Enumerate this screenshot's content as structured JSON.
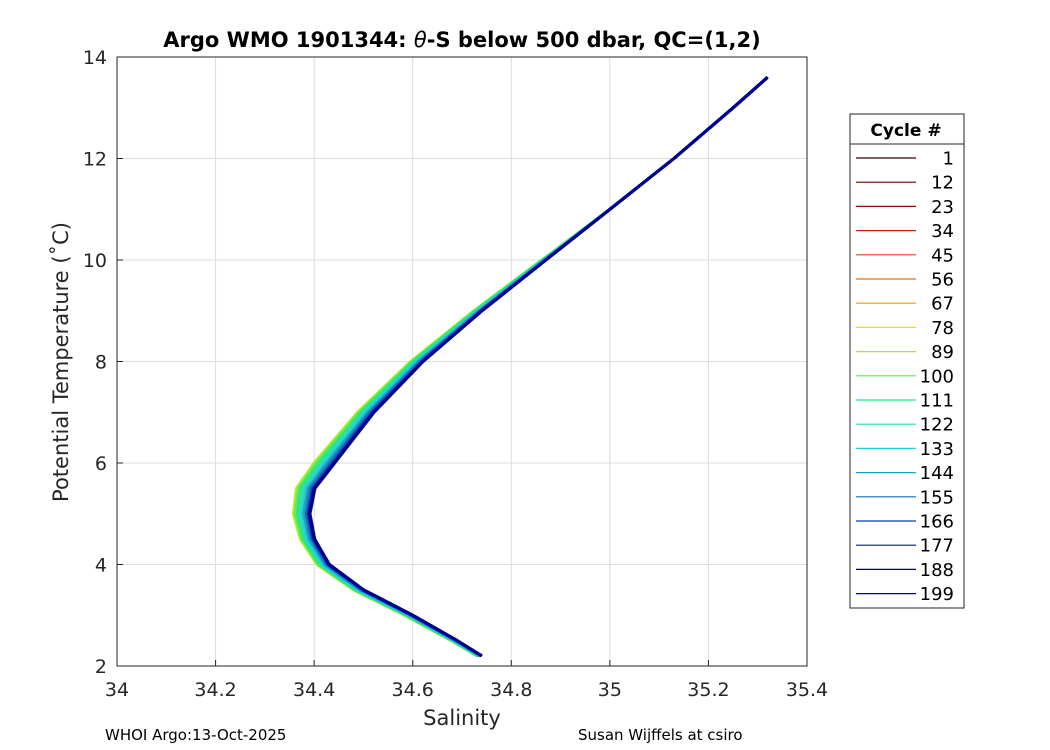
{
  "chart_data": {
    "type": "line",
    "title_prefix": "Argo WMO 1901344: ",
    "title_theta": "θ",
    "title_suffix": "-S below 500 dbar,  QC=(1,2)",
    "xlabel": "Salinity",
    "ylabel": "Potential Temperature (",
    "ylabel_unit": "˚C)",
    "xlim": [
      34,
      35.4
    ],
    "ylim": [
      2,
      14
    ],
    "x_ticks": [
      "34",
      "34.2",
      "34.4",
      "34.6",
      "34.8",
      "35",
      "35.2",
      "35.4"
    ],
    "y_ticks": [
      "2",
      "4",
      "6",
      "8",
      "10",
      "12",
      "14"
    ],
    "grid": true,
    "colormap": "jet",
    "legend": {
      "title": "Cycle #",
      "placement": "outside-right",
      "entries": [
        {
          "label": "1",
          "color": "#3a0000"
        },
        {
          "label": "12",
          "color": "#6a0000"
        },
        {
          "label": "23",
          "color": "#a00000"
        },
        {
          "label": "34",
          "color": "#d02010"
        },
        {
          "label": "45",
          "color": "#e84010"
        },
        {
          "label": "56",
          "color": "#e87010"
        },
        {
          "label": "67",
          "color": "#e8a000"
        },
        {
          "label": "78",
          "color": "#f0e000"
        },
        {
          "label": "89",
          "color": "#a8e820"
        },
        {
          "label": "100",
          "color": "#50e850"
        },
        {
          "label": "111",
          "color": "#20e880"
        },
        {
          "label": "122",
          "color": "#20e0b0"
        },
        {
          "label": "133",
          "color": "#20d0e0"
        },
        {
          "label": "144",
          "color": "#10a0d0"
        },
        {
          "label": "155",
          "color": "#0870c0"
        },
        {
          "label": "166",
          "color": "#0040b0"
        },
        {
          "label": "177",
          "color": "#001890"
        },
        {
          "label": "188",
          "color": "#000070"
        },
        {
          "label": "199",
          "color": "#000098"
        }
      ]
    },
    "base_profile": {
      "salinity": [
        34.74,
        34.69,
        34.6,
        34.5,
        34.43,
        34.4,
        34.39,
        34.4,
        34.44,
        34.52,
        34.62,
        34.74,
        34.87,
        35.0,
        35.13,
        35.25,
        35.32
      ],
      "theta": [
        2.2,
        2.5,
        3.0,
        3.5,
        4.0,
        4.5,
        5.0,
        5.5,
        6.0,
        7.0,
        8.0,
        9.0,
        10.0,
        11.0,
        12.0,
        13.0,
        13.6
      ]
    },
    "profile_offsets": [
      0.0,
      0.0,
      -0.003,
      -0.005,
      -0.008,
      -0.012,
      -0.02,
      -0.03,
      -0.04,
      -0.035,
      -0.03,
      -0.025,
      -0.02,
      -0.014,
      -0.008,
      -0.003,
      0.0,
      0.002,
      0.0
    ]
  },
  "footer": {
    "left": "WHOI Argo:13-Oct-2025",
    "right": "Susan Wijffels at csiro"
  }
}
